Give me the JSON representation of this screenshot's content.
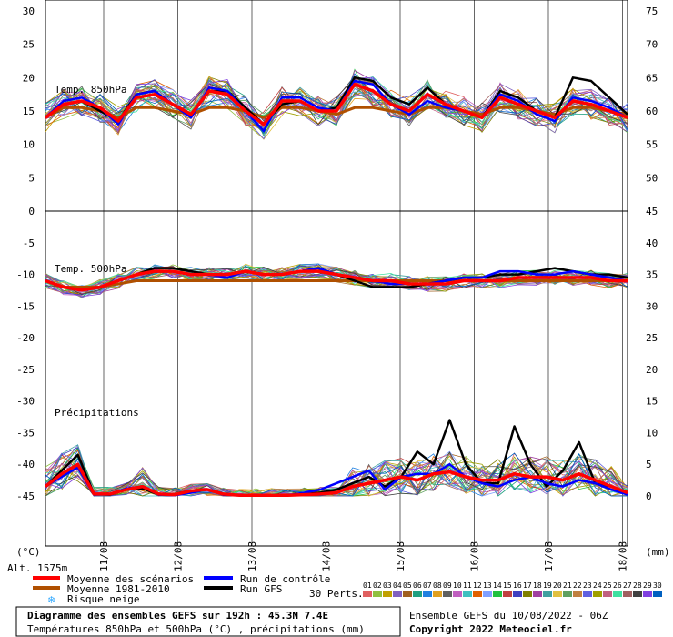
{
  "chart_data": {
    "type": "line",
    "title": "Diagramme des ensembles GEFS sur 192h : 45.3N 7.4E",
    "subtitle": "Températures 850hPa et 500hPa (°C) , précipitations (mm)",
    "run_info": "Ensemble GEFS du 10/08/2022 - 06Z",
    "copyright": "Copyright 2022 Meteociel.fr",
    "altitude": "Alt. 1575m",
    "left_unit": "(°C)",
    "right_unit": "(mm)",
    "panels": {
      "temp850_label": "Temp. 850hPa",
      "temp500_label": "Temp. 500hPa",
      "precip_label": "Précipitations"
    },
    "x_dates": [
      "11/08",
      "12/08",
      "13/08",
      "14/08",
      "15/08",
      "16/08",
      "17/08",
      "18/08"
    ],
    "left_ticks_top": [
      "30",
      "25",
      "20",
      "15",
      "10",
      "5",
      "0"
    ],
    "left_ticks_bottom": [
      "-5",
      "-10",
      "-15",
      "-20",
      "-25",
      "-30",
      "-35",
      "-40",
      "-45"
    ],
    "right_ticks_top": [
      "75",
      "70",
      "65",
      "60",
      "55",
      "50",
      "45"
    ],
    "right_ticks_bottom": [
      "40",
      "35",
      "30",
      "25",
      "20",
      "15",
      "10",
      "5",
      "0"
    ],
    "temp850": {
      "mean": [
        14,
        16,
        16.5,
        15.5,
        13.5,
        17,
        17.5,
        16,
        14.5,
        18,
        17.5,
        15,
        13,
        16.5,
        16.5,
        15,
        15,
        19,
        18,
        16,
        15,
        17.5,
        16,
        15,
        14,
        17,
        16,
        15,
        14,
        16.5,
        16,
        15,
        14
      ],
      "climatology": [
        14,
        15.5,
        15.5,
        15,
        14,
        15.5,
        15.5,
        15,
        14.5,
        15.5,
        15.5,
        15,
        14,
        15.5,
        15.5,
        15,
        14.5,
        15.5,
        15.5,
        15,
        14.5,
        15.5,
        15.5,
        15,
        14.5,
        15.5,
        15.5,
        15,
        14.5,
        15.5,
        15.5,
        15,
        14.5
      ],
      "control": [
        14,
        16.5,
        17,
        15.5,
        13,
        17.5,
        18,
        16,
        14,
        18.5,
        18,
        15,
        12,
        17,
        17,
        15.5,
        15,
        19.5,
        19,
        16,
        14.5,
        16.5,
        15.5,
        15,
        14,
        17.5,
        16.5,
        14.5,
        13.5,
        17,
        16.5,
        15.5,
        14
      ],
      "gfs": [
        14,
        16,
        16.5,
        15,
        13.5,
        17.5,
        18,
        16,
        14.5,
        18,
        18,
        15.5,
        13,
        16,
        16.5,
        15,
        15.5,
        20,
        19.5,
        17,
        16,
        18.5,
        16,
        15,
        14,
        18,
        17,
        15,
        14,
        20,
        19.5,
        17,
        14.5
      ]
    },
    "temp500": {
      "mean": [
        -11,
        -12,
        -12.5,
        -12,
        -11,
        -10,
        -9.5,
        -9.5,
        -10,
        -10,
        -10,
        -9.5,
        -10,
        -10,
        -9.5,
        -9.5,
        -10,
        -10.5,
        -11,
        -11,
        -11.5,
        -11.5,
        -11.5,
        -11,
        -11,
        -11,
        -10.5,
        -10.5,
        -10.5,
        -10.5,
        -10.5,
        -11,
        -11
      ],
      "climatology": [
        -11,
        -12,
        -12,
        -12,
        -11.5,
        -11,
        -11,
        -11,
        -11,
        -11,
        -11,
        -11,
        -11,
        -11,
        -11,
        -11,
        -11,
        -11,
        -11,
        -11,
        -11,
        -11,
        -11,
        -11,
        -11,
        -11,
        -11,
        -11,
        -11,
        -11,
        -11,
        -11,
        -11
      ],
      "control": [
        -11,
        -12,
        -12.5,
        -12,
        -11,
        -10,
        -9.5,
        -9.5,
        -10,
        -10,
        -10.5,
        -9.5,
        -10,
        -10,
        -9.5,
        -9,
        -10,
        -10.5,
        -11,
        -11.5,
        -11.5,
        -11.5,
        -11,
        -10.5,
        -10.5,
        -9.5,
        -9.5,
        -10,
        -10,
        -9.5,
        -10,
        -10.5,
        -11
      ],
      "gfs": [
        -11,
        -12,
        -12.5,
        -12,
        -11,
        -10,
        -9,
        -9,
        -9.5,
        -10,
        -10,
        -9.5,
        -10,
        -10,
        -9.5,
        -9,
        -10,
        -11,
        -12,
        -12,
        -12,
        -11.5,
        -11,
        -10.5,
        -10.5,
        -10,
        -10,
        -9.5,
        -9,
        -9.5,
        -10,
        -10,
        -10.5
      ]
    },
    "precip": {
      "mean": [
        1.5,
        3.5,
        5,
        0.3,
        0.3,
        1,
        1.5,
        0.3,
        0.2,
        0.8,
        1,
        0.3,
        0.1,
        0.1,
        0.1,
        0.1,
        0.2,
        0.3,
        0.5,
        1.5,
        2,
        2.5,
        3,
        2.5,
        3.5,
        3.8,
        3,
        2.5,
        2.5,
        3.5,
        3,
        3,
        2.5,
        3.5,
        2.5,
        1.5,
        0.5
      ],
      "control": [
        1.5,
        3,
        4.5,
        0.2,
        0.3,
        1.2,
        1.5,
        0.2,
        0.1,
        0.5,
        1,
        0.2,
        0.1,
        0.1,
        0.1,
        0.1,
        0.5,
        1,
        2,
        3,
        4,
        1,
        3,
        3.5,
        3.5,
        5,
        3,
        2,
        1.5,
        2.5,
        3,
        2,
        1.5,
        2.5,
        2,
        1,
        0.2
      ],
      "gfs": [
        1.5,
        4,
        6.5,
        0.3,
        0.2,
        1,
        1.2,
        0.2,
        0.1,
        0.8,
        1,
        0.2,
        0.1,
        0.1,
        0.1,
        0.1,
        0.3,
        0.5,
        1,
        2,
        3,
        1.5,
        3,
        7,
        5,
        12,
        5,
        2,
        2,
        11,
        5,
        1.5,
        4,
        8.5,
        2,
        1.5,
        0.5
      ]
    },
    "left_ylim_top": [
      0,
      30
    ],
    "left_ylim_bottom": [
      -45,
      0
    ],
    "right_ylim_precip": [
      0,
      45
    ]
  },
  "legend": {
    "mean_label": "Moyenne des scénarios",
    "climatology_label": "Moyenne 1981-2010",
    "snow_label": "Risque neige",
    "control_label": "Run de contrôle",
    "gfs_label": "Run GFS",
    "perts_label": "30 Perts.",
    "perts_numbers": [
      "01",
      "02",
      "03",
      "04",
      "05",
      "06",
      "07",
      "08",
      "09",
      "10",
      "11",
      "12",
      "13",
      "14",
      "15",
      "16",
      "17",
      "18",
      "19",
      "20",
      "21",
      "22",
      "23",
      "24",
      "25",
      "26",
      "27",
      "28",
      "29",
      "30"
    ],
    "colors": {
      "mean": "#ff0000",
      "climatology": "#b05000",
      "control": "#0000ff",
      "gfs": "#000000",
      "snow": "#33aaff"
    },
    "perts_colors": [
      "#e06060",
      "#90c040",
      "#c0a000",
      "#8060c0",
      "#a06020",
      "#20a080",
      "#2080e0",
      "#e0a020",
      "#606060",
      "#c060c0",
      "#40c0c0",
      "#e06000",
      "#80a0ff",
      "#20c040",
      "#c04040",
      "#4040c0",
      "#808000",
      "#a040a0",
      "#40a0a0",
      "#e0c040",
      "#60a060",
      "#c08040",
      "#6060e0",
      "#a0a000",
      "#c06080",
      "#40e0a0",
      "#a06060",
      "#404040",
      "#8040e0",
      "#0060c0"
    ]
  }
}
